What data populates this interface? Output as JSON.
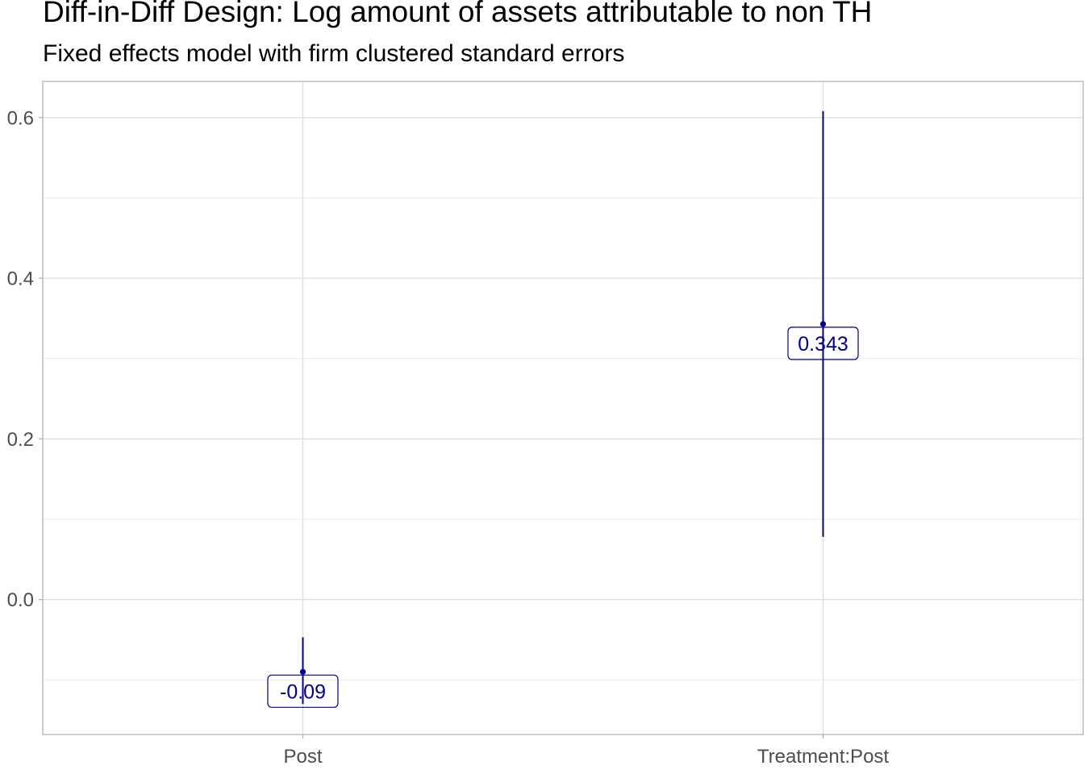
{
  "chart_data": {
    "type": "scatter",
    "title": "Diff-in-Diff Design: Log amount of assets attributable to non TH",
    "subtitle": "Fixed effects model with firm clustered standard errors",
    "xlabel": "",
    "ylabel": "",
    "categories": [
      "Post",
      "Treatment:Post"
    ],
    "points": [
      {
        "category": "Post",
        "estimate": -0.09,
        "ci_low": -0.13,
        "ci_high": -0.047,
        "label": "-0.09"
      },
      {
        "category": "Treatment:Post",
        "estimate": 0.343,
        "ci_low": 0.078,
        "ci_high": 0.608,
        "label": "0.343"
      }
    ],
    "y_ticks": [
      0.0,
      0.2,
      0.4,
      0.6
    ],
    "y_tick_labels": [
      "0.0",
      "0.2",
      "0.4",
      "0.6"
    ],
    "ylim": [
      -0.168,
      0.645
    ],
    "grid": true,
    "legend": "none",
    "color": "#00008B"
  }
}
